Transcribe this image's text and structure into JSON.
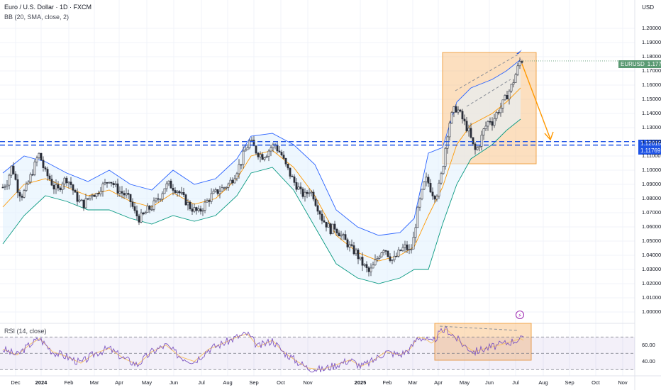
{
  "header": {
    "title": "Euro / U.S. Dollar · 1D · FXCM",
    "indicator": "BB (20, SMA, close, 2)",
    "currency": "USD"
  },
  "rsi": {
    "label": "RSI (14, close)",
    "ticks": [
      "60.00",
      "40.00"
    ],
    "alert_glyph": "⚡"
  },
  "price_tags": {
    "symbol": "EURUSD",
    "last": "1.17703",
    "level1": "1.12015",
    "level2": "1.11769"
  },
  "colors": {
    "bull": "#26a69a",
    "bear": "#ef5350",
    "candle": "#2a2e39",
    "bb_upper": "#2962ff",
    "bb_lower": "#089981",
    "bb_basis": "#ff9800",
    "rsi_line": "#7e57c2",
    "rsi_ma": "#f7c36b",
    "zone": "#f9c58a",
    "dashed_level": "#1e53e5",
    "arrow": "#ff9800"
  },
  "chart_data": {
    "type": "candlestick",
    "symbol": "EURUSD",
    "timeframe": "1D",
    "source": "FXCM",
    "y_axis": {
      "ticks": [
        "1.20000",
        "1.19000",
        "1.18000",
        "1.17000",
        "1.16000",
        "1.15000",
        "1.14000",
        "1.13000",
        "1.12000",
        "1.11000",
        "1.10000",
        "1.09000",
        "1.08000",
        "1.07000",
        "1.06000",
        "1.05000",
        "1.04000",
        "1.03000",
        "1.02000",
        "1.01000",
        "1.00000"
      ],
      "range": [
        0.995,
        1.205
      ]
    },
    "x_axis": {
      "ticks": [
        {
          "label": "Dec",
          "bold": false
        },
        {
          "label": "2024",
          "bold": true
        },
        {
          "label": "Feb",
          "bold": false
        },
        {
          "label": "Mar",
          "bold": false
        },
        {
          "label": "Apr",
          "bold": false
        },
        {
          "label": "May",
          "bold": false
        },
        {
          "label": "Jun",
          "bold": false
        },
        {
          "label": "Jul",
          "bold": false
        },
        {
          "label": "Aug",
          "bold": false
        },
        {
          "label": "Sep",
          "bold": false
        },
        {
          "label": "Oct",
          "bold": false
        },
        {
          "label": "Nov",
          "bold": false
        },
        {
          "label": "2025",
          "bold": true
        },
        {
          "label": "Feb",
          "bold": false
        },
        {
          "label": "Mar",
          "bold": false
        },
        {
          "label": "Apr",
          "bold": false
        },
        {
          "label": "May",
          "bold": false
        },
        {
          "label": "Jun",
          "bold": false
        },
        {
          "label": "Jul",
          "bold": false
        },
        {
          "label": "Aug",
          "bold": false
        },
        {
          "label": "Sep",
          "bold": false
        },
        {
          "label": "Oct",
          "bold": false
        },
        {
          "label": "Nov",
          "bold": false
        }
      ]
    },
    "price_path": [
      [
        0,
        1.088
      ],
      [
        6,
        1.092
      ],
      [
        12,
        1.102
      ],
      [
        16,
        1.098
      ],
      [
        20,
        1.088
      ],
      [
        26,
        1.082
      ],
      [
        32,
        1.086
      ],
      [
        38,
        1.094
      ],
      [
        44,
        1.102
      ],
      [
        48,
        1.108
      ],
      [
        52,
        1.112
      ],
      [
        55,
        1.105
      ],
      [
        60,
        1.098
      ],
      [
        66,
        1.094
      ],
      [
        72,
        1.088
      ],
      [
        78,
        1.086
      ],
      [
        84,
        1.092
      ],
      [
        90,
        1.094
      ],
      [
        96,
        1.09
      ],
      [
        102,
        1.082
      ],
      [
        108,
        1.078
      ],
      [
        114,
        1.076
      ],
      [
        120,
        1.08
      ],
      [
        126,
        1.084
      ],
      [
        132,
        1.083
      ],
      [
        138,
        1.088
      ],
      [
        144,
        1.09
      ],
      [
        150,
        1.094
      ],
      [
        156,
        1.09
      ],
      [
        162,
        1.086
      ],
      [
        168,
        1.084
      ],
      [
        174,
        1.082
      ],
      [
        180,
        1.078
      ],
      [
        186,
        1.07
      ],
      [
        192,
        1.066
      ],
      [
        198,
        1.068
      ],
      [
        204,
        1.072
      ],
      [
        210,
        1.074
      ],
      [
        216,
        1.078
      ],
      [
        222,
        1.082
      ],
      [
        228,
        1.088
      ],
      [
        234,
        1.09
      ],
      [
        240,
        1.088
      ],
      [
        246,
        1.086
      ],
      [
        252,
        1.082
      ],
      [
        258,
        1.078
      ],
      [
        264,
        1.074
      ],
      [
        270,
        1.072
      ],
      [
        276,
        1.07
      ],
      [
        282,
        1.074
      ],
      [
        288,
        1.078
      ],
      [
        294,
        1.082
      ],
      [
        300,
        1.084
      ],
      [
        306,
        1.086
      ],
      [
        312,
        1.088
      ],
      [
        318,
        1.09
      ],
      [
        324,
        1.094
      ],
      [
        330,
        1.1
      ],
      [
        336,
        1.106
      ],
      [
        340,
        1.112
      ],
      [
        344,
        1.116
      ],
      [
        348,
        1.12
      ],
      [
        352,
        1.118
      ],
      [
        356,
        1.114
      ],
      [
        360,
        1.112
      ],
      [
        366,
        1.11
      ],
      [
        372,
        1.112
      ],
      [
        378,
        1.116
      ],
      [
        384,
        1.118
      ],
      [
        388,
        1.114
      ],
      [
        392,
        1.112
      ],
      [
        398,
        1.104
      ],
      [
        404,
        1.098
      ],
      [
        410,
        1.092
      ],
      [
        416,
        1.088
      ],
      [
        420,
        1.084
      ],
      [
        426,
        1.082
      ],
      [
        432,
        1.086
      ],
      [
        438,
        1.082
      ],
      [
        442,
        1.076
      ],
      [
        446,
        1.072
      ],
      [
        450,
        1.066
      ],
      [
        456,
        1.062
      ],
      [
        462,
        1.058
      ],
      [
        468,
        1.06
      ],
      [
        474,
        1.056
      ],
      [
        480,
        1.052
      ],
      [
        486,
        1.048
      ],
      [
        492,
        1.044
      ],
      [
        498,
        1.042
      ],
      [
        504,
        1.036
      ],
      [
        510,
        1.032
      ],
      [
        516,
        1.028
      ],
      [
        520,
        1.03
      ],
      [
        526,
        1.036
      ],
      [
        532,
        1.042
      ],
      [
        538,
        1.046
      ],
      [
        544,
        1.04
      ],
      [
        550,
        1.036
      ],
      [
        556,
        1.04
      ],
      [
        562,
        1.044
      ],
      [
        568,
        1.046
      ],
      [
        574,
        1.042
      ],
      [
        578,
        1.048
      ],
      [
        582,
        1.062
      ],
      [
        586,
        1.074
      ],
      [
        590,
        1.082
      ],
      [
        594,
        1.09
      ],
      [
        598,
        1.094
      ],
      [
        602,
        1.088
      ],
      [
        606,
        1.084
      ],
      [
        610,
        1.082
      ],
      [
        614,
        1.086
      ],
      [
        618,
        1.096
      ],
      [
        622,
        1.108
      ],
      [
        626,
        1.124
      ],
      [
        630,
        1.134
      ],
      [
        634,
        1.14
      ],
      [
        638,
        1.144
      ],
      [
        642,
        1.142
      ],
      [
        646,
        1.138
      ],
      [
        650,
        1.134
      ],
      [
        654,
        1.13
      ],
      [
        658,
        1.126
      ],
      [
        662,
        1.118
      ],
      [
        666,
        1.114
      ],
      [
        670,
        1.116
      ],
      [
        674,
        1.122
      ],
      [
        678,
        1.128
      ],
      [
        682,
        1.132
      ],
      [
        686,
        1.136
      ],
      [
        690,
        1.134
      ],
      [
        694,
        1.138
      ],
      [
        698,
        1.142
      ],
      [
        702,
        1.144
      ],
      [
        706,
        1.148
      ],
      [
        710,
        1.152
      ],
      [
        714,
        1.156
      ],
      [
        718,
        1.16
      ],
      [
        722,
        1.166
      ],
      [
        726,
        1.172
      ],
      [
        730,
        1.178
      ],
      [
        734,
        1.177
      ]
    ],
    "price_x_unit": "trading days from chart start",
    "bollinger_upper": [
      [
        0,
        1.098
      ],
      [
        30,
        1.11
      ],
      [
        60,
        1.106
      ],
      [
        90,
        1.098
      ],
      [
        120,
        1.092
      ],
      [
        150,
        1.1
      ],
      [
        180,
        1.09
      ],
      [
        210,
        1.086
      ],
      [
        240,
        1.1
      ],
      [
        270,
        1.09
      ],
      [
        300,
        1.094
      ],
      [
        330,
        1.108
      ],
      [
        350,
        1.124
      ],
      [
        380,
        1.126
      ],
      [
        410,
        1.118
      ],
      [
        440,
        1.104
      ],
      [
        470,
        1.072
      ],
      [
        500,
        1.06
      ],
      [
        530,
        1.054
      ],
      [
        560,
        1.056
      ],
      [
        580,
        1.066
      ],
      [
        600,
        1.112
      ],
      [
        620,
        1.116
      ],
      [
        640,
        1.148
      ],
      [
        660,
        1.158
      ],
      [
        690,
        1.164
      ],
      [
        710,
        1.17
      ],
      [
        730,
        1.178
      ]
    ],
    "bollinger_lower": [
      [
        0,
        1.048
      ],
      [
        30,
        1.068
      ],
      [
        60,
        1.082
      ],
      [
        90,
        1.078
      ],
      [
        120,
        1.072
      ],
      [
        150,
        1.072
      ],
      [
        180,
        1.066
      ],
      [
        210,
        1.062
      ],
      [
        240,
        1.068
      ],
      [
        270,
        1.064
      ],
      [
        300,
        1.068
      ],
      [
        330,
        1.082
      ],
      [
        350,
        1.098
      ],
      [
        380,
        1.102
      ],
      [
        410,
        1.086
      ],
      [
        440,
        1.06
      ],
      [
        470,
        1.034
      ],
      [
        500,
        1.024
      ],
      [
        530,
        1.02
      ],
      [
        560,
        1.024
      ],
      [
        580,
        1.03
      ],
      [
        600,
        1.03
      ],
      [
        620,
        1.062
      ],
      [
        640,
        1.09
      ],
      [
        660,
        1.108
      ],
      [
        690,
        1.118
      ],
      [
        710,
        1.128
      ],
      [
        730,
        1.136
      ]
    ],
    "bollinger_basis": [
      [
        0,
        1.074
      ],
      [
        30,
        1.09
      ],
      [
        60,
        1.094
      ],
      [
        90,
        1.088
      ],
      [
        120,
        1.082
      ],
      [
        150,
        1.086
      ],
      [
        180,
        1.078
      ],
      [
        210,
        1.074
      ],
      [
        240,
        1.084
      ],
      [
        270,
        1.076
      ],
      [
        300,
        1.08
      ],
      [
        330,
        1.094
      ],
      [
        350,
        1.11
      ],
      [
        380,
        1.114
      ],
      [
        410,
        1.102
      ],
      [
        440,
        1.082
      ],
      [
        470,
        1.054
      ],
      [
        500,
        1.042
      ],
      [
        530,
        1.036
      ],
      [
        560,
        1.04
      ],
      [
        580,
        1.046
      ],
      [
        600,
        1.068
      ],
      [
        620,
        1.088
      ],
      [
        640,
        1.118
      ],
      [
        660,
        1.132
      ],
      [
        690,
        1.14
      ],
      [
        710,
        1.148
      ],
      [
        730,
        1.158
      ]
    ],
    "horizontal_levels": [
      1.12015,
      1.11769
    ],
    "last_price": 1.17703,
    "rsi": {
      "range": [
        25,
        85
      ],
      "bands": [
        70,
        30
      ],
      "midline": 50,
      "values": [
        [
          0,
          55
        ],
        [
          20,
          48
        ],
        [
          40,
          62
        ],
        [
          52,
          68
        ],
        [
          70,
          52
        ],
        [
          90,
          46
        ],
        [
          110,
          38
        ],
        [
          130,
          50
        ],
        [
          150,
          56
        ],
        [
          170,
          44
        ],
        [
          190,
          36
        ],
        [
          210,
          52
        ],
        [
          230,
          60
        ],
        [
          250,
          46
        ],
        [
          270,
          40
        ],
        [
          290,
          55
        ],
        [
          310,
          62
        ],
        [
          330,
          70
        ],
        [
          345,
          74
        ],
        [
          360,
          58
        ],
        [
          380,
          66
        ],
        [
          395,
          52
        ],
        [
          415,
          40
        ],
        [
          430,
          32
        ],
        [
          450,
          30
        ],
        [
          470,
          36
        ],
        [
          490,
          42
        ],
        [
          505,
          34
        ],
        [
          520,
          40
        ],
        [
          540,
          52
        ],
        [
          560,
          48
        ],
        [
          575,
          56
        ],
        [
          585,
          70
        ],
        [
          595,
          68
        ],
        [
          605,
          62
        ],
        [
          615,
          74
        ],
        [
          625,
          80
        ],
        [
          635,
          72
        ],
        [
          650,
          60
        ],
        [
          665,
          52
        ],
        [
          680,
          56
        ],
        [
          700,
          60
        ],
        [
          715,
          64
        ],
        [
          730,
          68
        ],
        [
          734,
          66
        ]
      ]
    }
  }
}
